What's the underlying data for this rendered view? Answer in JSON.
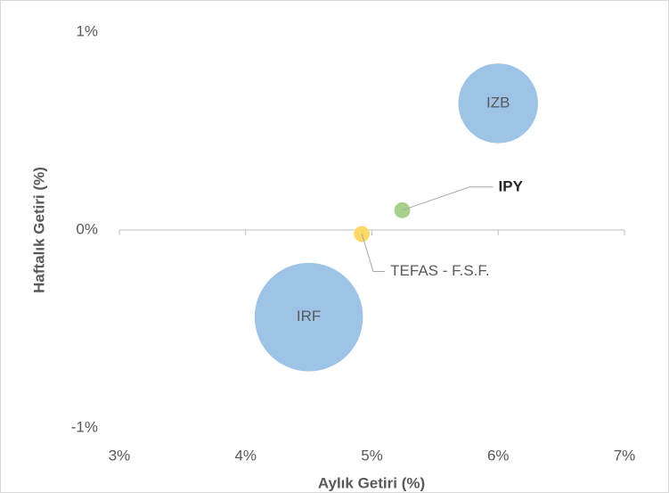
{
  "chart_data": {
    "type": "bubble",
    "x_label": "Aylık Getiri (%)",
    "y_label": "Haftalık Getiri (%)",
    "xlim": [
      3,
      7
    ],
    "ylim": [
      -1,
      1
    ],
    "xticks": [
      {
        "value": 3,
        "label": "3%"
      },
      {
        "value": 4,
        "label": "4%"
      },
      {
        "value": 5,
        "label": "5%"
      },
      {
        "value": 6,
        "label": "6%"
      },
      {
        "value": 7,
        "label": "7%"
      }
    ],
    "yticks": [
      {
        "value": -1,
        "label": "-1%"
      },
      {
        "value": 0,
        "label": "0%"
      },
      {
        "value": 1,
        "label": "1%"
      }
    ],
    "series": [
      {
        "name": "IZB",
        "color": "#9dc3e6",
        "x": [
          6.0
        ],
        "values": [
          0.64
        ],
        "sizes": [
          20
        ]
      },
      {
        "name": "IPY",
        "color": "#a9d18e",
        "x": [
          5.24
        ],
        "values": [
          0.1
        ],
        "sizes": [
          0.8
        ]
      },
      {
        "name": "TEFAS - F.S.F.",
        "color": "#ffd966",
        "x": [
          4.92
        ],
        "values": [
          -0.02
        ],
        "sizes": [
          0.8
        ]
      },
      {
        "name": "IRF",
        "color": "#9dc3e6",
        "x": [
          4.5
        ],
        "values": [
          -0.44
        ],
        "sizes": [
          37
        ]
      }
    ]
  }
}
